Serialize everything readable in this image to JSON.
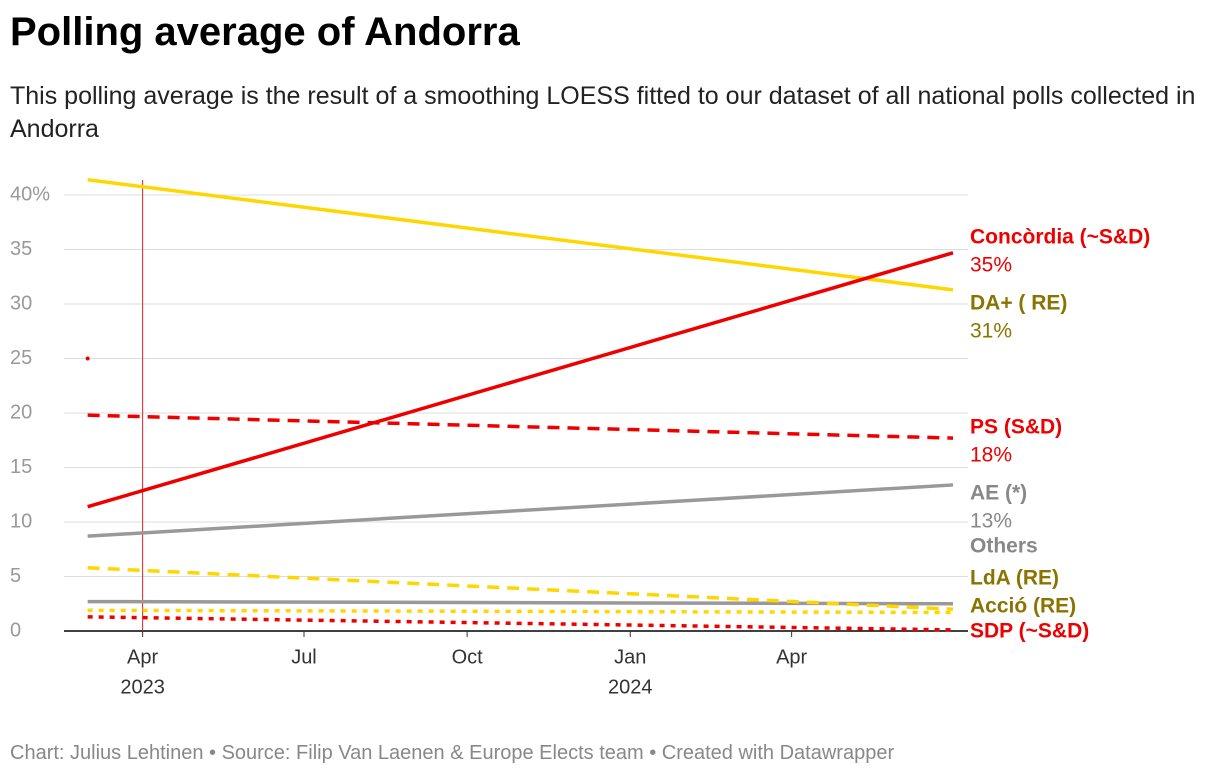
{
  "chart_data": {
    "type": "line",
    "title": "Polling average of Andorra",
    "subtitle": "This polling average is the result of a smoothing LOESS fitted to our dataset of all national polls collected in Andorra",
    "footer": "Chart: Julius Lehtinen • Source: Filip Van Laenen & Europe Elects team • Created with Datawrapper",
    "x": [
      "2023-03",
      "2024-07"
    ],
    "xlim": [
      "2023-02",
      "2024-07"
    ],
    "xticks": [
      {
        "value": "2023-04",
        "label": "Apr"
      },
      {
        "value": "2023-07",
        "label": "Jul"
      },
      {
        "value": "2023-10",
        "label": "Oct"
      },
      {
        "value": "2024-01",
        "label": "Jan"
      },
      {
        "value": "2024-04",
        "label": "Apr"
      }
    ],
    "year_labels": [
      {
        "value": "2023-04",
        "label": "2023"
      },
      {
        "value": "2024-01",
        "label": "2024"
      }
    ],
    "ylim": [
      0,
      40
    ],
    "yticks": [
      0,
      5,
      10,
      15,
      20,
      25,
      30,
      35,
      {
        "value": 40,
        "label": "40%"
      }
    ],
    "grid": true,
    "reference_line": {
      "x": "2023-04",
      "color": "#e02020"
    },
    "points": [
      {
        "x": "2023-03",
        "y": 25,
        "color": "#ee0000"
      }
    ],
    "series": [
      {
        "name": "DA+ ( RE)",
        "color": "#ffd700",
        "label_color": "#8a7400",
        "dash": "solid",
        "values": [
          41.4,
          31.3
        ],
        "value_labels": [
          null,
          "31%"
        ]
      },
      {
        "name": "Concòrdia (~S&D)",
        "color": "#ee0000",
        "label_color": "#ee0000",
        "dash": "solid",
        "values": [
          11.4,
          34.7
        ],
        "value_labels": [
          null,
          "35%"
        ]
      },
      {
        "name": "PS (S&D)",
        "color": "#ee0000",
        "label_color": "#ee0000",
        "dash": "dashed",
        "values": [
          19.8,
          17.7
        ],
        "value_labels": [
          null,
          "18%"
        ]
      },
      {
        "name": "AE (*)",
        "color": "#999999",
        "label_color": "#888888",
        "dash": "solid",
        "values": [
          8.7,
          13.4
        ],
        "value_labels": [
          null,
          "13%"
        ]
      },
      {
        "name": "Others",
        "color": "#999999",
        "label_color": "#888888",
        "dash": "solid",
        "values": [
          2.7,
          2.5
        ]
      },
      {
        "name": "LdA (RE)",
        "color": "#ffd700",
        "label_color": "#8a7400",
        "dash": "dashed",
        "values": [
          5.8,
          2.0
        ]
      },
      {
        "name": "Acció (RE)",
        "color": "#ffd700",
        "label_color": "#8a7400",
        "dash": "dotted",
        "values": [
          1.9,
          1.7
        ]
      },
      {
        "name": "SDP (~S&D)",
        "color": "#ee0000",
        "label_color": "#ee0000",
        "dash": "dotted",
        "values": [
          1.3,
          0.1
        ]
      }
    ]
  }
}
